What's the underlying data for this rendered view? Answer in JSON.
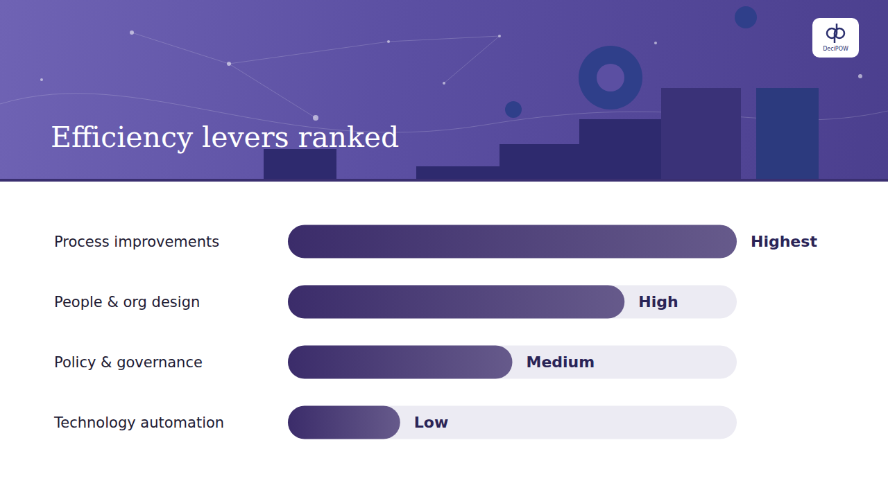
{
  "chart_data": {
    "type": "bar",
    "title": "Efficiency levers ranked",
    "brand": "DeciPOW",
    "orientation": "horizontal",
    "categories": [
      "Process improvements",
      "People & org design",
      "Policy & governance",
      "Technology automation"
    ],
    "values": [
      4,
      3,
      2,
      1
    ],
    "value_labels": [
      "Highest",
      "High",
      "Medium",
      "Low"
    ],
    "color": "#3b2c6a",
    "xlim": [
      0,
      4
    ],
    "xticks": [
      0,
      1,
      2,
      3,
      4
    ],
    "grid": false,
    "data_labels": true,
    "tick_labels": "y"
  }
}
